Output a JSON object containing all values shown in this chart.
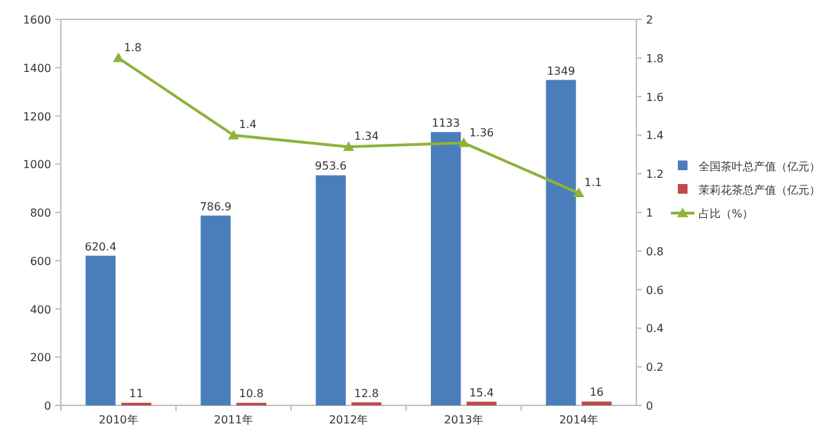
{
  "chart_data": {
    "type": "bar",
    "categories": [
      "2010年",
      "2011年",
      "2012年",
      "2013年",
      "2014年"
    ],
    "series": [
      {
        "name": "全国茶叶总产值（亿元）",
        "color": "#4a7ebb",
        "values": [
          620.4,
          786.9,
          953.6,
          1133,
          1349
        ]
      },
      {
        "name": "茉莉花茶总产值（亿元）",
        "color": "#be4b48",
        "values": [
          11,
          10.8,
          12.8,
          15.4,
          16
        ]
      },
      {
        "name": "占比（%）",
        "type": "line",
        "axis": "y2",
        "color": "#8db33a",
        "marker": "triangle",
        "values": [
          1.8,
          1.4,
          1.34,
          1.36,
          1.1
        ]
      }
    ],
    "ylim": [
      0,
      1600
    ],
    "yticks": [
      0,
      200,
      400,
      600,
      800,
      1000,
      1200,
      1400,
      1600
    ],
    "y2lim": [
      0,
      2
    ],
    "y2ticks": [
      0,
      0.2,
      0.4,
      0.6,
      0.8,
      1,
      1.2,
      1.4,
      1.6,
      1.8,
      2
    ],
    "data_labels": true,
    "legend": "right",
    "grid": false
  }
}
